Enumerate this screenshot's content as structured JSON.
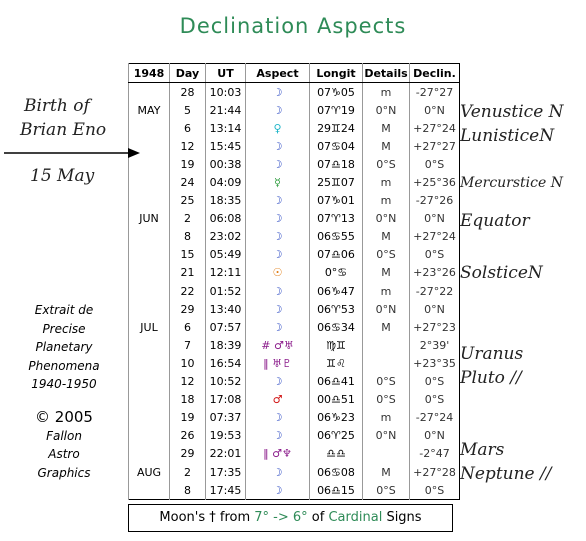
{
  "title": "Declination Aspects",
  "table": {
    "header": [
      "1948",
      "Day",
      "UT",
      "Aspect",
      "Longit",
      "Details",
      "Declin."
    ],
    "rows": [
      {
        "day": "28",
        "ut": "10:03",
        "aspect": "☽",
        "color": "#1f3fbf",
        "longit": "07♑05",
        "details": "m",
        "declin": "-27°27"
      },
      {
        "month": "MAY",
        "day": "5",
        "ut": "21:44",
        "aspect": "☽",
        "color": "#1f3fbf",
        "longit": "07♈19",
        "details": "0°N",
        "declin": "0°N"
      },
      {
        "day": "6",
        "ut": "13:14",
        "aspect": "♀",
        "color": "#1fb5c8",
        "longit": "29♊24",
        "details": "M",
        "declin": "+27°24"
      },
      {
        "day": "12",
        "ut": "15:45",
        "aspect": "☽",
        "color": "#1f3fbf",
        "longit": "07♋04",
        "details": "M",
        "declin": "+27°27"
      },
      {
        "day": "19",
        "ut": "00:38",
        "aspect": "☽",
        "color": "#1f3fbf",
        "longit": "07♎18",
        "details": "0°S",
        "declin": "0°S"
      },
      {
        "day": "24",
        "ut": "04:09",
        "aspect": "☿",
        "color": "#2a9a3a",
        "longit": "25♊07",
        "details": "m",
        "declin": "+25°36"
      },
      {
        "day": "25",
        "ut": "18:35",
        "aspect": "☽",
        "color": "#1f3fbf",
        "longit": "07♑01",
        "details": "m",
        "declin": "-27°26"
      },
      {
        "month": "JUN",
        "day": "2",
        "ut": "06:08",
        "aspect": "☽",
        "color": "#1f3fbf",
        "longit": "07♈13",
        "details": "0°N",
        "declin": "0°N"
      },
      {
        "day": "8",
        "ut": "23:02",
        "aspect": "☽",
        "color": "#1f3fbf",
        "longit": "06♋55",
        "details": "M",
        "declin": "+27°24"
      },
      {
        "day": "15",
        "ut": "05:49",
        "aspect": "☽",
        "color": "#1f3fbf",
        "longit": "07♎06",
        "details": "0°S",
        "declin": "0°S"
      },
      {
        "day": "21",
        "ut": "12:11",
        "aspect": "☉",
        "color": "#e07a10",
        "longit": "0°♋",
        "details": "M",
        "declin": "+23°26"
      },
      {
        "day": "22",
        "ut": "01:52",
        "aspect": "☽",
        "color": "#1f3fbf",
        "longit": "06♑47",
        "details": "m",
        "declin": "-27°22"
      },
      {
        "day": "29",
        "ut": "13:40",
        "aspect": "☽",
        "color": "#1f3fbf",
        "longit": "06♈53",
        "details": "0°N",
        "declin": "0°N"
      },
      {
        "month": "JUL",
        "day": "6",
        "ut": "07:57",
        "aspect": "☽",
        "color": "#1f3fbf",
        "longit": "06♋34",
        "details": "M",
        "declin": "+27°23"
      },
      {
        "day": "7",
        "ut": "18:39",
        "aspect": "# ♂♅",
        "color": "#8a1a8a",
        "longit": "♍♊",
        "declin": "2°39'"
      },
      {
        "day": "10",
        "ut": "16:54",
        "aspect": "‖ ♅♇",
        "color": "#8a1a8a",
        "longit": "♊♌",
        "declin": "+23°35"
      },
      {
        "day": "12",
        "ut": "10:52",
        "aspect": "☽",
        "color": "#1f3fbf",
        "longit": "06♎41",
        "details": "0°S",
        "declin": "0°S"
      },
      {
        "day": "18",
        "ut": "17:08",
        "aspect": "♂",
        "color": "#d01010",
        "longit": "00♎51",
        "details": "0°S",
        "declin": "0°S"
      },
      {
        "day": "19",
        "ut": "07:37",
        "aspect": "☽",
        "color": "#1f3fbf",
        "longit": "06♑23",
        "details": "m",
        "declin": "-27°24"
      },
      {
        "day": "26",
        "ut": "19:53",
        "aspect": "☽",
        "color": "#1f3fbf",
        "longit": "06♈25",
        "details": "0°N",
        "declin": "0°N"
      },
      {
        "day": "29",
        "ut": "22:01",
        "aspect": "‖ ♂♆",
        "color": "#8a1a8a",
        "longit": "♎♎",
        "declin": "-2°47"
      },
      {
        "month": "AUG",
        "day": "2",
        "ut": "17:35",
        "aspect": "☽",
        "color": "#1f3fbf",
        "longit": "06♋08",
        "details": "M",
        "declin": "+27°28"
      },
      {
        "day": "8",
        "ut": "17:45",
        "aspect": "☽",
        "color": "#1f3fbf",
        "longit": "06♎15",
        "details": "0°S",
        "declin": "0°S"
      }
    ],
    "footer": [
      "Moon's † from ",
      "7° -> 6°",
      " of ",
      "Cardinal",
      " Signs"
    ]
  },
  "left_notes": {
    "birth": [
      "Birth of",
      "Brian Eno"
    ],
    "date": "15 May",
    "source": [
      "Extrait de",
      "Precise",
      "Planetary",
      "Phenomena",
      "1940-1950"
    ],
    "copyright": [
      "© 2005",
      "Fallon",
      "Astro",
      "Graphics"
    ]
  },
  "right_notes": [
    "Venustice N",
    "LunisticeN",
    "Mercurstice N",
    "Equator",
    "SolsticeN",
    "Uranus",
    "Pluto //",
    "Mars",
    "Neptune //"
  ]
}
